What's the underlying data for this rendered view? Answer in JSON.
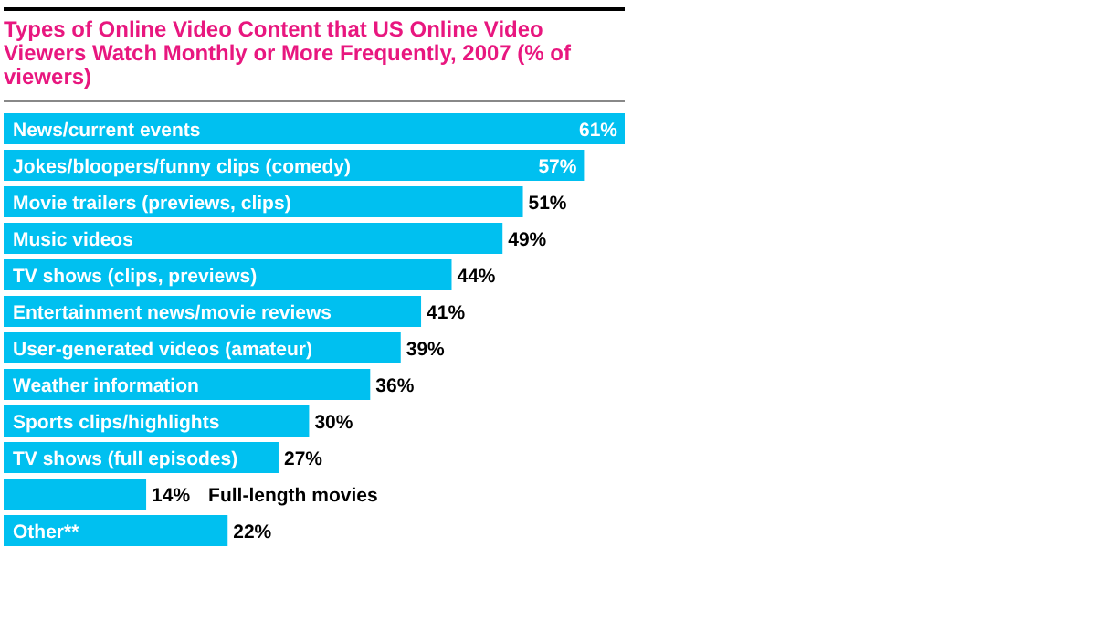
{
  "chart_data": {
    "type": "bar",
    "orientation": "horizontal",
    "title": "Types of Online Video Content that US Online Video Viewers Watch Monthly or More Frequently, 2007 (% of viewers)",
    "categories": [
      "News/current events",
      "Jokes/bloopers/funny clips (comedy)",
      "Movie trailers (previews, clips)",
      "Music videos",
      "TV shows (clips, previews)",
      "Entertainment news/movie reviews",
      "User-generated videos (amateur)",
      "Weather information",
      "Sports clips/highlights",
      "TV shows (full episodes)",
      "Full-length movies",
      "Other**"
    ],
    "values": [
      61,
      57,
      51,
      49,
      44,
      41,
      39,
      36,
      30,
      27,
      14,
      22
    ],
    "value_labels": [
      "61%",
      "57%",
      "51%",
      "49%",
      "44%",
      "41%",
      "39%",
      "36%",
      "30%",
      "27%",
      "14%",
      "22%"
    ],
    "color": "#00c0f0"
  }
}
